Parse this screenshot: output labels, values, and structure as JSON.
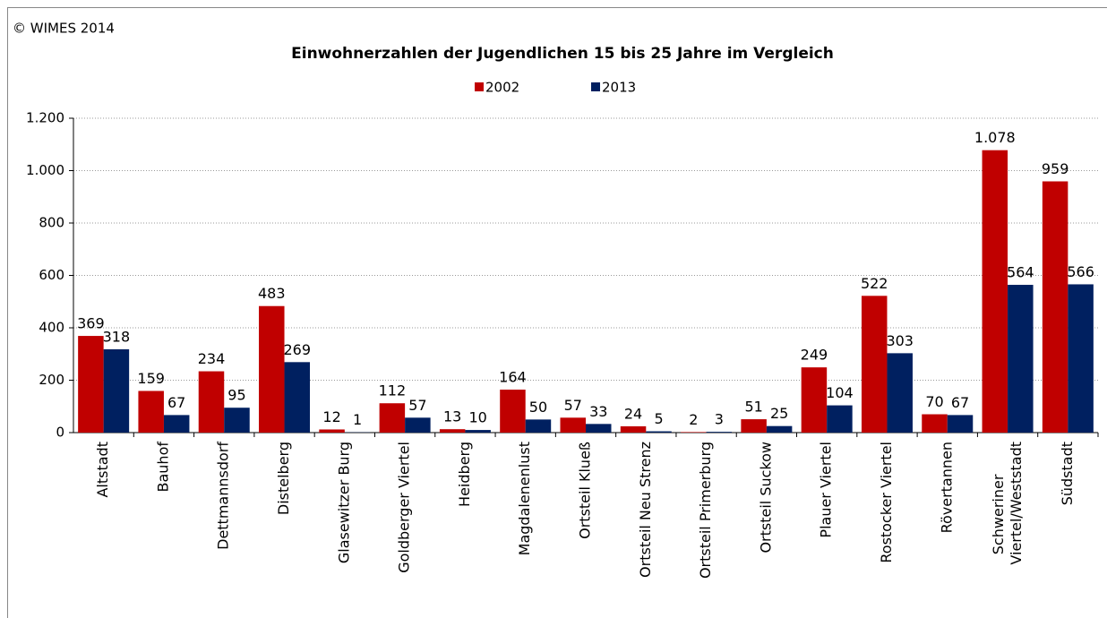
{
  "chart_data": {
    "type": "bar",
    "copyright": "© WIMES 2014",
    "title": "Einwohnerzahlen der Jugendlichen 15 bis 25 Jahre im Vergleich",
    "categories": [
      "Altstadt",
      "Bauhof",
      "Dettmannsdorf",
      "Distelberg",
      "Glasewitzer Burg",
      "Goldberger Viertel",
      "Heidberg",
      "Magdalenenlust",
      "Ortsteil Klueß",
      "Ortsteil Neu Strenz",
      "Ortsteil Primerburg",
      "Ortsteil Suckow",
      "Plauer Viertel",
      "Rostocker Viertel",
      "Rövertannen",
      "Schweriner Viertel/Weststadt",
      "Südstadt"
    ],
    "series": [
      {
        "name": "2002",
        "color": "#c00000",
        "label_color": "#ff0000",
        "values": [
          369,
          159,
          234,
          483,
          12,
          112,
          13,
          164,
          57,
          24,
          2,
          51,
          249,
          522,
          70,
          1078,
          959
        ],
        "value_labels": [
          "369",
          "159",
          "234",
          "483",
          "12",
          "112",
          "13",
          "164",
          "57",
          "24",
          "2",
          "51",
          "249",
          "522",
          "70",
          "1.078",
          "959"
        ]
      },
      {
        "name": "2013",
        "color": "#002060",
        "label_color": "#1f3864",
        "values": [
          318,
          67,
          95,
          269,
          1,
          57,
          10,
          50,
          33,
          5,
          3,
          25,
          104,
          303,
          67,
          564,
          566
        ]
      }
    ],
    "ylim": [
      0,
      1200
    ],
    "yticks": [
      0,
      200,
      400,
      600,
      800,
      {
        "value": 1000,
        "label": "1.000"
      },
      {
        "value": 1200,
        "label": "1.200"
      }
    ],
    "grid": true
  }
}
